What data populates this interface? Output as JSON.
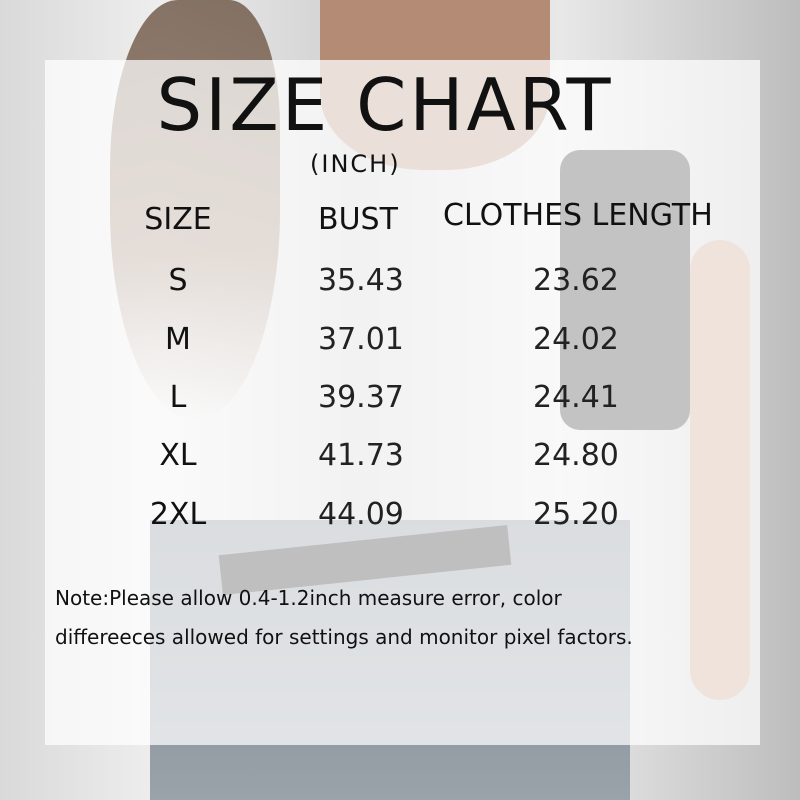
{
  "title": "SIZE CHART",
  "unit": "(INCH)",
  "table": {
    "headers": [
      "SIZE",
      "BUST",
      "CLOTHES LENGTH"
    ],
    "rows": [
      {
        "size": "S",
        "bust": "35.43",
        "length": "23.62"
      },
      {
        "size": "M",
        "bust": "37.01",
        "length": "24.02"
      },
      {
        "size": "L",
        "bust": "39.37",
        "length": "24.41"
      },
      {
        "size": "XL",
        "bust": "41.73",
        "length": "24.80"
      },
      {
        "size": "2XL",
        "bust": "44.09",
        "length": "25.20"
      }
    ]
  },
  "note": {
    "line1": "Note:Please allow 0.4-1.2inch measure error, color",
    "line2": "differeeces allowed for settings and monitor pixel factors."
  }
}
